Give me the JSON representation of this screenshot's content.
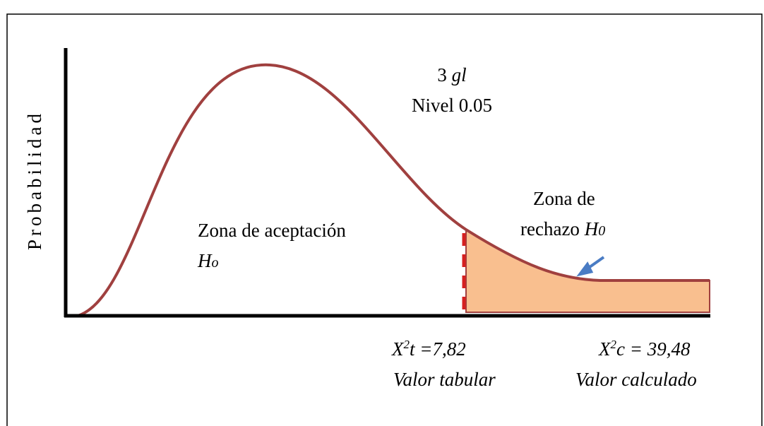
{
  "y_axis_label": "Probabilidad",
  "degrees": {
    "number": "3",
    "unit": "gl"
  },
  "level": "Nivel 0.05",
  "acceptance_zone": {
    "line1": "Zona de aceptación",
    "h": "H",
    "sub": "o"
  },
  "rejection_zone": {
    "line1": "Zona de",
    "line2": "rechazo ",
    "h": "H",
    "sub": "0"
  },
  "tabular": {
    "symbol": "X",
    "power": "2",
    "rest": "t =7,82",
    "caption": "Valor tabular"
  },
  "calculated": {
    "symbol": "X",
    "power": "2",
    "rest": "c = 39,48",
    "caption": "Valor calculado"
  }
}
